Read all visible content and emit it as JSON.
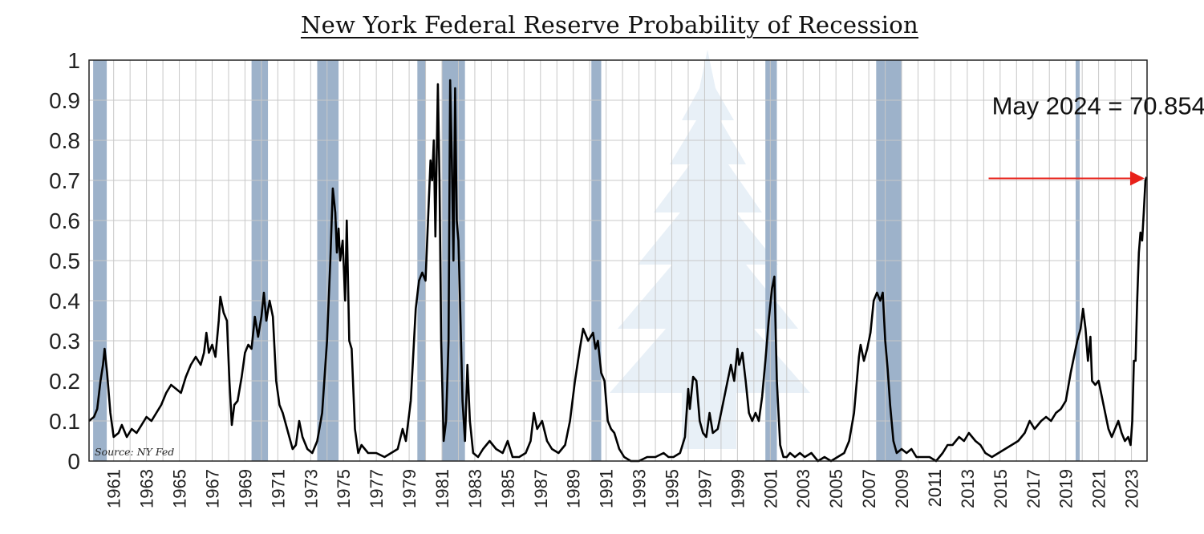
{
  "chart_data": {
    "type": "line",
    "title": "New York Federal Reserve Probability of Recession",
    "xlabel": "",
    "ylabel": "",
    "xlim": [
      1960.0,
      2024.45
    ],
    "ylim": [
      0,
      1
    ],
    "y_ticks": [
      0,
      0.1,
      0.2,
      0.3,
      0.4,
      0.5,
      0.6,
      0.7,
      0.8,
      0.9,
      1
    ],
    "y_tick_labels": [
      "0",
      "0.1",
      "0.2",
      "0.3",
      "0.4",
      "0.5",
      "0.6",
      "0.7",
      "0.8",
      "0.9",
      "1"
    ],
    "x_tick_labels": [
      "1961",
      "1963",
      "1965",
      "1967",
      "1969",
      "1971",
      "1973",
      "1975",
      "1977",
      "1979",
      "1981",
      "1983",
      "1985",
      "1987",
      "1989",
      "1991",
      "1993",
      "1995",
      "1997",
      "1999",
      "2001",
      "2003",
      "2005",
      "2007",
      "2009",
      "2011",
      "2013",
      "2015",
      "2017",
      "2019",
      "2021",
      "2023"
    ],
    "grid": true,
    "recession_bands": [
      [
        1960.25,
        1961.08
      ],
      [
        1969.9,
        1970.9
      ],
      [
        1973.9,
        1975.2
      ],
      [
        1980.0,
        1980.5
      ],
      [
        1981.5,
        1982.9
      ],
      [
        1990.6,
        1991.2
      ],
      [
        2001.2,
        2001.9
      ],
      [
        2007.95,
        2009.5
      ],
      [
        2020.1,
        2020.35
      ]
    ],
    "series": [
      {
        "values": [
          [
            1960.0,
            0.1
          ],
          [
            1960.3,
            0.11
          ],
          [
            1960.5,
            0.13
          ],
          [
            1960.7,
            0.2
          ],
          [
            1960.85,
            0.24
          ],
          [
            1960.95,
            0.28
          ],
          [
            1961.1,
            0.22
          ],
          [
            1961.3,
            0.12
          ],
          [
            1961.5,
            0.06
          ],
          [
            1961.8,
            0.07
          ],
          [
            1962.0,
            0.09
          ],
          [
            1962.3,
            0.06
          ],
          [
            1962.6,
            0.08
          ],
          [
            1962.9,
            0.07
          ],
          [
            1963.2,
            0.09
          ],
          [
            1963.5,
            0.11
          ],
          [
            1963.8,
            0.1
          ],
          [
            1964.1,
            0.12
          ],
          [
            1964.4,
            0.14
          ],
          [
            1964.7,
            0.17
          ],
          [
            1965.0,
            0.19
          ],
          [
            1965.3,
            0.18
          ],
          [
            1965.6,
            0.17
          ],
          [
            1965.9,
            0.21
          ],
          [
            1966.2,
            0.24
          ],
          [
            1966.5,
            0.26
          ],
          [
            1966.8,
            0.24
          ],
          [
            1967.0,
            0.27
          ],
          [
            1967.15,
            0.32
          ],
          [
            1967.3,
            0.27
          ],
          [
            1967.5,
            0.29
          ],
          [
            1967.7,
            0.26
          ],
          [
            1967.9,
            0.35
          ],
          [
            1968.0,
            0.41
          ],
          [
            1968.2,
            0.37
          ],
          [
            1968.4,
            0.35
          ],
          [
            1968.55,
            0.2
          ],
          [
            1968.7,
            0.09
          ],
          [
            1968.85,
            0.14
          ],
          [
            1969.05,
            0.15
          ],
          [
            1969.3,
            0.21
          ],
          [
            1969.5,
            0.27
          ],
          [
            1969.7,
            0.29
          ],
          [
            1969.9,
            0.28
          ],
          [
            1970.1,
            0.36
          ],
          [
            1970.3,
            0.31
          ],
          [
            1970.5,
            0.36
          ],
          [
            1970.65,
            0.42
          ],
          [
            1970.8,
            0.35
          ],
          [
            1971.0,
            0.4
          ],
          [
            1971.2,
            0.36
          ],
          [
            1971.4,
            0.2
          ],
          [
            1971.6,
            0.14
          ],
          [
            1971.8,
            0.12
          ],
          [
            1972.0,
            0.09
          ],
          [
            1972.2,
            0.06
          ],
          [
            1972.4,
            0.03
          ],
          [
            1972.6,
            0.04
          ],
          [
            1972.8,
            0.1
          ],
          [
            1973.0,
            0.06
          ],
          [
            1973.3,
            0.03
          ],
          [
            1973.6,
            0.02
          ],
          [
            1973.9,
            0.05
          ],
          [
            1974.2,
            0.12
          ],
          [
            1974.5,
            0.3
          ],
          [
            1974.7,
            0.5
          ],
          [
            1974.85,
            0.68
          ],
          [
            1975.0,
            0.62
          ],
          [
            1975.1,
            0.52
          ],
          [
            1975.2,
            0.58
          ],
          [
            1975.3,
            0.5
          ],
          [
            1975.45,
            0.55
          ],
          [
            1975.6,
            0.4
          ],
          [
            1975.7,
            0.6
          ],
          [
            1975.85,
            0.3
          ],
          [
            1976.0,
            0.28
          ],
          [
            1976.2,
            0.08
          ],
          [
            1976.4,
            0.02
          ],
          [
            1976.6,
            0.04
          ],
          [
            1976.8,
            0.03
          ],
          [
            1977.0,
            0.02
          ],
          [
            1977.5,
            0.02
          ],
          [
            1978.0,
            0.01
          ],
          [
            1978.4,
            0.02
          ],
          [
            1978.8,
            0.03
          ],
          [
            1979.1,
            0.08
          ],
          [
            1979.3,
            0.05
          ],
          [
            1979.6,
            0.15
          ],
          [
            1979.9,
            0.38
          ],
          [
            1980.1,
            0.45
          ],
          [
            1980.3,
            0.47
          ],
          [
            1980.5,
            0.45
          ],
          [
            1980.65,
            0.6
          ],
          [
            1980.8,
            0.75
          ],
          [
            1980.9,
            0.7
          ],
          [
            1981.0,
            0.8
          ],
          [
            1981.1,
            0.56
          ],
          [
            1981.25,
            0.94
          ],
          [
            1981.35,
            0.7
          ],
          [
            1981.45,
            0.3
          ],
          [
            1981.6,
            0.05
          ],
          [
            1981.75,
            0.1
          ],
          [
            1981.9,
            0.3
          ],
          [
            1982.0,
            0.95
          ],
          [
            1982.1,
            0.75
          ],
          [
            1982.2,
            0.5
          ],
          [
            1982.3,
            0.93
          ],
          [
            1982.4,
            0.6
          ],
          [
            1982.5,
            0.55
          ],
          [
            1982.6,
            0.4
          ],
          [
            1982.75,
            0.15
          ],
          [
            1982.9,
            0.05
          ],
          [
            1983.05,
            0.24
          ],
          [
            1983.2,
            0.1
          ],
          [
            1983.4,
            0.02
          ],
          [
            1983.7,
            0.01
          ],
          [
            1984.0,
            0.03
          ],
          [
            1984.4,
            0.05
          ],
          [
            1984.8,
            0.03
          ],
          [
            1985.2,
            0.02
          ],
          [
            1985.5,
            0.05
          ],
          [
            1985.8,
            0.01
          ],
          [
            1986.2,
            0.01
          ],
          [
            1986.6,
            0.02
          ],
          [
            1986.9,
            0.05
          ],
          [
            1987.1,
            0.12
          ],
          [
            1987.3,
            0.08
          ],
          [
            1987.6,
            0.1
          ],
          [
            1987.9,
            0.05
          ],
          [
            1988.2,
            0.03
          ],
          [
            1988.6,
            0.02
          ],
          [
            1989.0,
            0.04
          ],
          [
            1989.3,
            0.1
          ],
          [
            1989.6,
            0.2
          ],
          [
            1989.9,
            0.28
          ],
          [
            1990.1,
            0.33
          ],
          [
            1990.4,
            0.3
          ],
          [
            1990.7,
            0.32
          ],
          [
            1990.85,
            0.28
          ],
          [
            1991.0,
            0.3
          ],
          [
            1991.2,
            0.22
          ],
          [
            1991.4,
            0.2
          ],
          [
            1991.6,
            0.1
          ],
          [
            1991.8,
            0.08
          ],
          [
            1992.0,
            0.07
          ],
          [
            1992.3,
            0.03
          ],
          [
            1992.6,
            0.01
          ],
          [
            1993.0,
            0.0
          ],
          [
            1993.5,
            0.0
          ],
          [
            1994.0,
            0.01
          ],
          [
            1994.5,
            0.01
          ],
          [
            1995.0,
            0.02
          ],
          [
            1995.3,
            0.01
          ],
          [
            1995.6,
            0.01
          ],
          [
            1996.0,
            0.02
          ],
          [
            1996.3,
            0.06
          ],
          [
            1996.5,
            0.18
          ],
          [
            1996.6,
            0.13
          ],
          [
            1996.8,
            0.21
          ],
          [
            1997.0,
            0.2
          ],
          [
            1997.2,
            0.1
          ],
          [
            1997.4,
            0.07
          ],
          [
            1997.6,
            0.06
          ],
          [
            1997.8,
            0.12
          ],
          [
            1998.0,
            0.07
          ],
          [
            1998.3,
            0.08
          ],
          [
            1998.6,
            0.14
          ],
          [
            1998.9,
            0.2
          ],
          [
            1999.1,
            0.24
          ],
          [
            1999.3,
            0.2
          ],
          [
            1999.5,
            0.28
          ],
          [
            1999.6,
            0.24
          ],
          [
            1999.8,
            0.27
          ],
          [
            2000.0,
            0.2
          ],
          [
            2000.2,
            0.12
          ],
          [
            2000.4,
            0.1
          ],
          [
            2000.6,
            0.12
          ],
          [
            2000.8,
            0.1
          ],
          [
            2001.0,
            0.16
          ],
          [
            2001.2,
            0.25
          ],
          [
            2001.4,
            0.35
          ],
          [
            2001.6,
            0.43
          ],
          [
            2001.75,
            0.46
          ],
          [
            2001.9,
            0.2
          ],
          [
            2002.1,
            0.04
          ],
          [
            2002.3,
            0.01
          ],
          [
            2002.5,
            0.01
          ],
          [
            2002.7,
            0.02
          ],
          [
            2003.0,
            0.01
          ],
          [
            2003.3,
            0.02
          ],
          [
            2003.6,
            0.01
          ],
          [
            2004.0,
            0.02
          ],
          [
            2004.4,
            0.0
          ],
          [
            2004.8,
            0.01
          ],
          [
            2005.2,
            0.0
          ],
          [
            2005.6,
            0.01
          ],
          [
            2006.0,
            0.02
          ],
          [
            2006.3,
            0.05
          ],
          [
            2006.6,
            0.12
          ],
          [
            2006.9,
            0.26
          ],
          [
            2007.0,
            0.29
          ],
          [
            2007.2,
            0.25
          ],
          [
            2007.4,
            0.28
          ],
          [
            2007.6,
            0.32
          ],
          [
            2007.8,
            0.4
          ],
          [
            2008.0,
            0.42
          ],
          [
            2008.2,
            0.4
          ],
          [
            2008.35,
            0.42
          ],
          [
            2008.5,
            0.3
          ],
          [
            2008.65,
            0.23
          ],
          [
            2008.8,
            0.14
          ],
          [
            2009.0,
            0.05
          ],
          [
            2009.2,
            0.02
          ],
          [
            2009.5,
            0.03
          ],
          [
            2009.8,
            0.02
          ],
          [
            2010.1,
            0.03
          ],
          [
            2010.4,
            0.01
          ],
          [
            2010.8,
            0.01
          ],
          [
            2011.2,
            0.01
          ],
          [
            2011.6,
            0.0
          ],
          [
            2012.0,
            0.02
          ],
          [
            2012.3,
            0.04
          ],
          [
            2012.6,
            0.04
          ],
          [
            2013.0,
            0.06
          ],
          [
            2013.3,
            0.05
          ],
          [
            2013.6,
            0.07
          ],
          [
            2014.0,
            0.05
          ],
          [
            2014.3,
            0.04
          ],
          [
            2014.6,
            0.02
          ],
          [
            2015.0,
            0.01
          ],
          [
            2015.4,
            0.02
          ],
          [
            2015.8,
            0.03
          ],
          [
            2016.2,
            0.04
          ],
          [
            2016.6,
            0.05
          ],
          [
            2017.0,
            0.07
          ],
          [
            2017.3,
            0.1
          ],
          [
            2017.6,
            0.08
          ],
          [
            2018.0,
            0.1
          ],
          [
            2018.3,
            0.11
          ],
          [
            2018.6,
            0.1
          ],
          [
            2018.9,
            0.12
          ],
          [
            2019.2,
            0.13
          ],
          [
            2019.5,
            0.15
          ],
          [
            2019.8,
            0.22
          ],
          [
            2020.0,
            0.26
          ],
          [
            2020.2,
            0.3
          ],
          [
            2020.4,
            0.33
          ],
          [
            2020.55,
            0.38
          ],
          [
            2020.7,
            0.33
          ],
          [
            2020.85,
            0.25
          ],
          [
            2021.0,
            0.31
          ],
          [
            2021.1,
            0.2
          ],
          [
            2021.3,
            0.19
          ],
          [
            2021.5,
            0.2
          ],
          [
            2021.7,
            0.16
          ],
          [
            2021.9,
            0.12
          ],
          [
            2022.1,
            0.08
          ],
          [
            2022.3,
            0.06
          ],
          [
            2022.5,
            0.08
          ],
          [
            2022.7,
            0.1
          ],
          [
            2022.9,
            0.07
          ],
          [
            2023.1,
            0.05
          ],
          [
            2023.3,
            0.06
          ],
          [
            2023.45,
            0.04
          ],
          [
            2023.55,
            0.1
          ],
          [
            2023.65,
            0.25
          ],
          [
            2023.75,
            0.25
          ],
          [
            2023.85,
            0.4
          ],
          [
            2023.95,
            0.52
          ],
          [
            2024.05,
            0.57
          ],
          [
            2024.15,
            0.55
          ],
          [
            2024.25,
            0.62
          ],
          [
            2024.35,
            0.7
          ],
          [
            2024.42,
            0.70854
          ]
        ]
      }
    ],
    "annotation": {
      "text": "May 2024 = 70.854%",
      "arrow_from": [
        2014.8,
        0.705
      ],
      "arrow_to": [
        2024.3,
        0.705
      ],
      "arrow_color": "#e8211a"
    },
    "source_note": "Source: NY Fed",
    "colors": {
      "line": "#000000",
      "recession_band": "#9db2ca",
      "grid": "#c8c8c8",
      "watermark": "#e4edf6"
    }
  }
}
